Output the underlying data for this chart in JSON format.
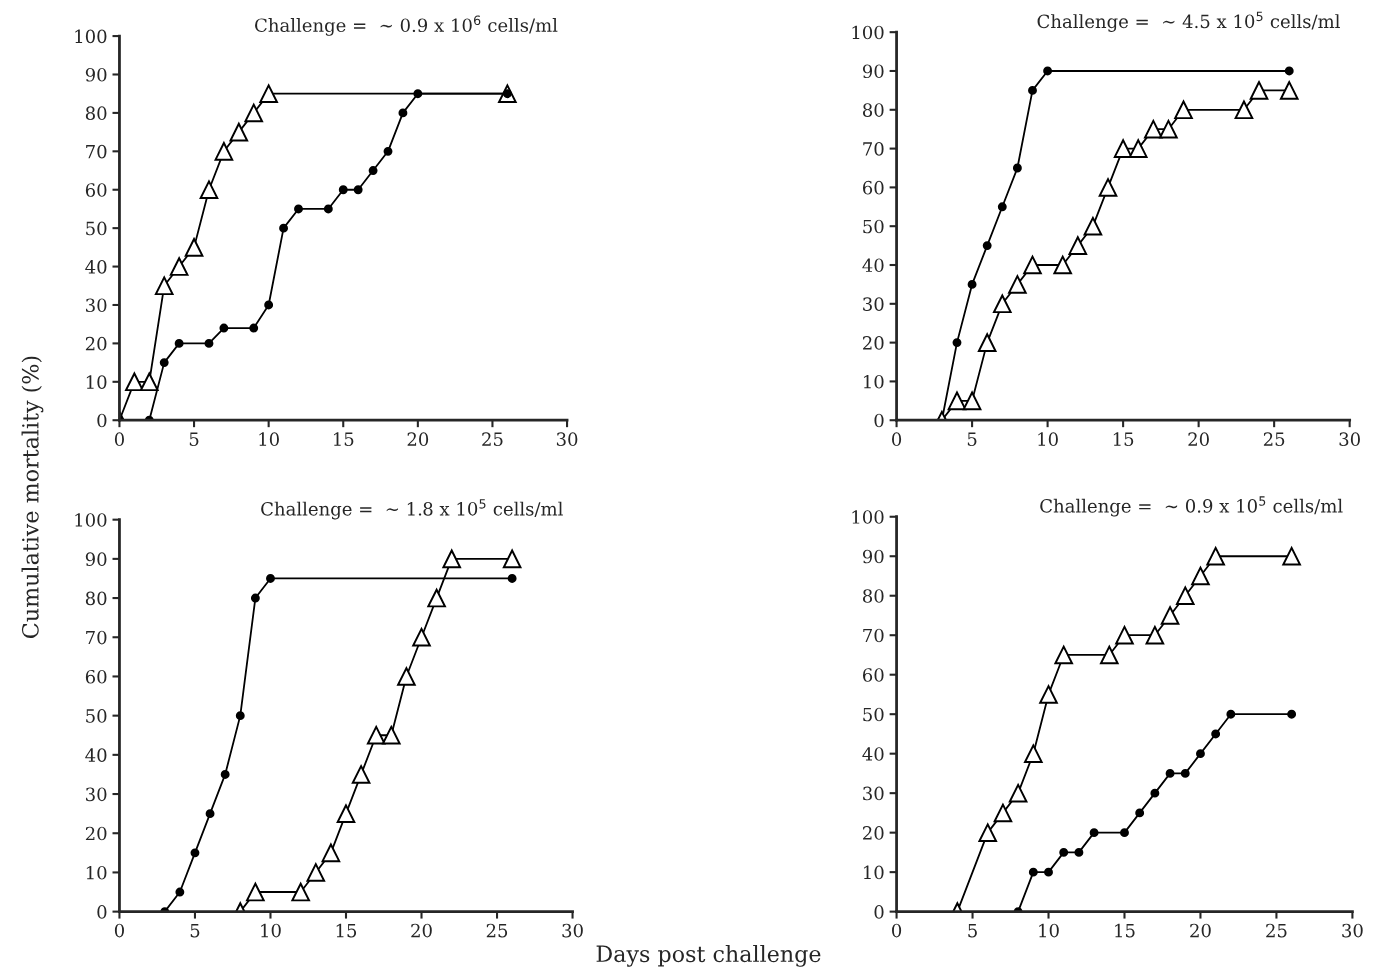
{
  "chart_data": [
    {
      "type": "line",
      "title": "Challenge =  ∼ 0.9 x 10$^{6}$ cells/ml",
      "ylabel": "Cumulative mortality (%)",
      "xlim": [
        0,
        30
      ],
      "ylim": [
        0,
        100
      ],
      "xticks": [
        0,
        5,
        10,
        15,
        20,
        25,
        30
      ],
      "yticks": [
        0,
        10,
        20,
        30,
        40,
        50,
        60,
        70,
        80,
        90,
        100
      ],
      "grid": false,
      "line_style": "solid",
      "series": [
        {
          "color": "#000000",
          "marker": "triangle",
          "x": [
            0,
            1,
            2,
            3,
            4,
            5,
            6,
            7,
            8,
            9,
            10,
            26
          ],
          "values": [
            0,
            10,
            10,
            35,
            40,
            45,
            60,
            70,
            75,
            80,
            85,
            85
          ]
        },
        {
          "color": "#000000",
          "marker": "circle",
          "x": [
            0,
            2,
            3,
            4,
            6,
            7,
            9,
            10,
            11,
            12,
            14,
            15,
            16,
            17,
            18,
            19,
            20,
            26
          ],
          "values": [
            0,
            0,
            15,
            20,
            20,
            24,
            24,
            30,
            50,
            55,
            55,
            60,
            60,
            65,
            70,
            80,
            85,
            85
          ]
        }
      ]
    },
    {
      "type": "line",
      "title": "Challenge =  ∼ 4.5 x 10$^{5}$ cells/ml",
      "xlim": [
        0,
        30
      ],
      "ylim": [
        0,
        100
      ],
      "xticks": [
        0,
        5,
        10,
        15,
        20,
        25,
        30
      ],
      "yticks": [
        0,
        10,
        20,
        30,
        40,
        50,
        60,
        70,
        80,
        90,
        100
      ],
      "grid": false,
      "line_style": "solid",
      "series": [
        {
          "color": "#000000",
          "marker": "circle",
          "x": [
            3,
            4,
            5,
            6,
            7,
            8,
            9,
            10,
            26
          ],
          "values": [
            0,
            20,
            35,
            45,
            55,
            65,
            85,
            90,
            90
          ]
        },
        {
          "color": "#000000",
          "marker": "triangle",
          "x": [
            3,
            4,
            5,
            6,
            7,
            8,
            9,
            11,
            12,
            13,
            14,
            15,
            16,
            17,
            18,
            19,
            23,
            24,
            26
          ],
          "values": [
            0,
            5,
            5,
            20,
            30,
            35,
            40,
            40,
            45,
            50,
            60,
            70,
            70,
            75,
            75,
            80,
            80,
            85,
            85
          ]
        }
      ]
    },
    {
      "type": "line",
      "title": "Challenge =  ∼ 1.8 x 10$^{5}$ cells/ml",
      "xlabel": "Days post challenge",
      "xlim": [
        0,
        30
      ],
      "ylim": [
        0,
        100
      ],
      "xticks": [
        0,
        5,
        10,
        15,
        20,
        25,
        30
      ],
      "yticks": [
        0,
        10,
        20,
        30,
        40,
        50,
        60,
        70,
        80,
        90,
        100
      ],
      "grid": false,
      "line_style": "solid",
      "series": [
        {
          "color": "#000000",
          "marker": "circle",
          "x": [
            3,
            4,
            5,
            6,
            7,
            8,
            9,
            10,
            26
          ],
          "values": [
            0,
            5,
            15,
            25,
            35,
            50,
            80,
            85,
            85
          ]
        },
        {
          "color": "#000000",
          "marker": "triangle",
          "x": [
            8,
            9,
            12,
            13,
            14,
            15,
            16,
            17,
            18,
            19,
            20,
            21,
            22,
            26
          ],
          "values": [
            0,
            5,
            5,
            10,
            15,
            25,
            35,
            45,
            45,
            60,
            70,
            80,
            90,
            90
          ]
        }
      ]
    },
    {
      "type": "line",
      "title": "Challenge =  ∼ 0.9 x 10$^{5}$ cells/ml",
      "xlim": [
        0,
        30
      ],
      "ylim": [
        0,
        100
      ],
      "xticks": [
        0,
        5,
        10,
        15,
        20,
        25,
        30
      ],
      "yticks": [
        0,
        10,
        20,
        30,
        40,
        50,
        60,
        70,
        80,
        90,
        100
      ],
      "grid": false,
      "line_style": "solid",
      "series": [
        {
          "color": "#000000",
          "marker": "triangle",
          "x": [
            4,
            6,
            7,
            8,
            9,
            10,
            11,
            14,
            15,
            17,
            18,
            19,
            20,
            21,
            26
          ],
          "values": [
            0,
            20,
            25,
            30,
            40,
            55,
            65,
            65,
            70,
            70,
            75,
            80,
            85,
            90,
            90
          ]
        },
        {
          "color": "#000000",
          "marker": "circle",
          "x": [
            8,
            9,
            10,
            11,
            12,
            13,
            15,
            16,
            17,
            18,
            19,
            20,
            21,
            22,
            26
          ],
          "values": [
            0,
            10,
            10,
            15,
            15,
            20,
            20,
            25,
            30,
            35,
            35,
            40,
            45,
            50,
            50
          ]
        }
      ]
    }
  ]
}
